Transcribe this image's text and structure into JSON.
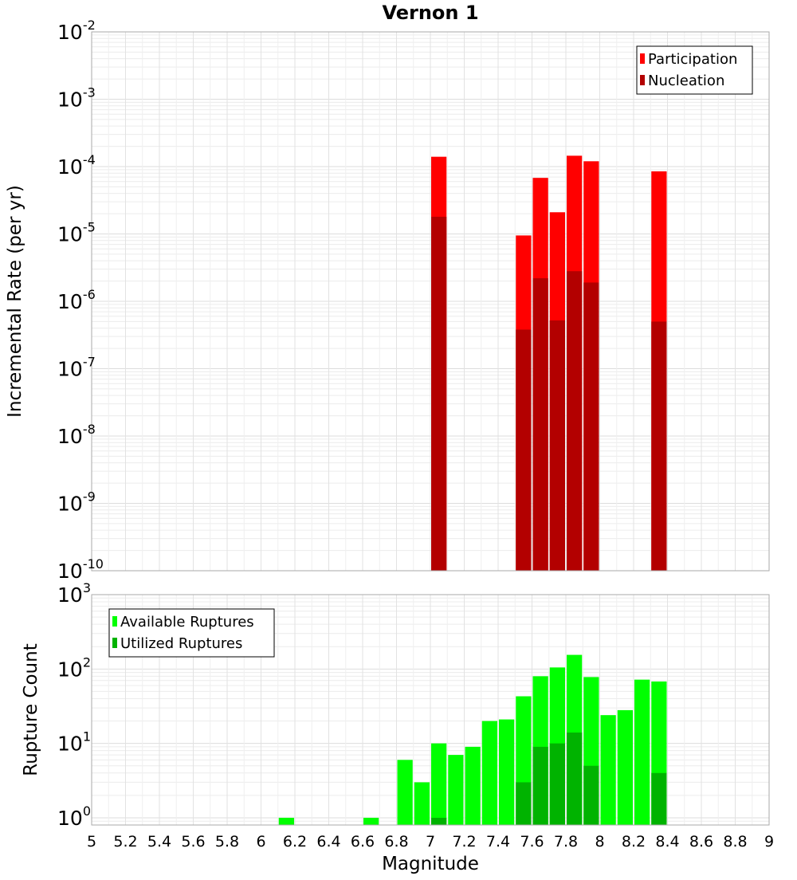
{
  "chart_data": [
    {
      "type": "bar",
      "title": "Vernon 1",
      "ylabel": "Incremental Rate (per yr)",
      "xlabel": "",
      "yscale": "log",
      "ylim": [
        1e-10,
        0.01
      ],
      "xlim": [
        5,
        9
      ],
      "bar_width": 0.1,
      "ytick_exponents": [
        "-2",
        "-3",
        "-4",
        "-5",
        "-6",
        "-7",
        "-8",
        "-9",
        "-10"
      ],
      "legend_position": "top-right",
      "series": [
        {
          "name": "Participation",
          "color": "#ff0000",
          "points": [
            {
              "x": 7.05,
              "y": 0.00014
            },
            {
              "x": 7.55,
              "y": 9.5e-06
            },
            {
              "x": 7.65,
              "y": 6.8e-05
            },
            {
              "x": 7.75,
              "y": 2.1e-05
            },
            {
              "x": 7.85,
              "y": 0.000145
            },
            {
              "x": 7.95,
              "y": 0.00012
            },
            {
              "x": 8.35,
              "y": 8.5e-05
            }
          ]
        },
        {
          "name": "Nucleation",
          "color": "#b30000",
          "points": [
            {
              "x": 7.05,
              "y": 1.8e-05
            },
            {
              "x": 7.55,
              "y": 3.8e-07
            },
            {
              "x": 7.65,
              "y": 2.2e-06
            },
            {
              "x": 7.75,
              "y": 5.2e-07
            },
            {
              "x": 7.85,
              "y": 2.8e-06
            },
            {
              "x": 7.95,
              "y": 1.9e-06
            },
            {
              "x": 8.35,
              "y": 5e-07
            }
          ]
        }
      ]
    },
    {
      "type": "bar",
      "title": "",
      "ylabel": "Rupture Count",
      "xlabel": "Magnitude",
      "yscale": "log",
      "ylim": [
        0.8,
        1000
      ],
      "xlim": [
        5,
        9
      ],
      "bar_width": 0.1,
      "ytick_exponents": [
        "3",
        "2",
        "1",
        "0"
      ],
      "xticks": [
        "5",
        "5.2",
        "5.4",
        "5.6",
        "5.8",
        "6",
        "6.2",
        "6.4",
        "6.6",
        "6.8",
        "7",
        "7.2",
        "7.4",
        "7.6",
        "7.8",
        "8",
        "8.2",
        "8.4",
        "8.6",
        "8.8",
        "9"
      ],
      "legend_position": "top-left",
      "series": [
        {
          "name": "Available Ruptures",
          "color": "#00ff00",
          "points": [
            {
              "x": 6.15,
              "y": 1
            },
            {
              "x": 6.65,
              "y": 1
            },
            {
              "x": 6.85,
              "y": 6
            },
            {
              "x": 6.95,
              "y": 3
            },
            {
              "x": 7.05,
              "y": 10
            },
            {
              "x": 7.15,
              "y": 7
            },
            {
              "x": 7.25,
              "y": 9
            },
            {
              "x": 7.35,
              "y": 20
            },
            {
              "x": 7.45,
              "y": 21
            },
            {
              "x": 7.55,
              "y": 43
            },
            {
              "x": 7.65,
              "y": 80
            },
            {
              "x": 7.75,
              "y": 105
            },
            {
              "x": 7.85,
              "y": 155
            },
            {
              "x": 7.95,
              "y": 78
            },
            {
              "x": 8.05,
              "y": 24
            },
            {
              "x": 8.15,
              "y": 28
            },
            {
              "x": 8.25,
              "y": 72
            },
            {
              "x": 8.35,
              "y": 68
            }
          ]
        },
        {
          "name": "Utilized Ruptures",
          "color": "#00b300",
          "points": [
            {
              "x": 7.05,
              "y": 1
            },
            {
              "x": 7.55,
              "y": 3
            },
            {
              "x": 7.65,
              "y": 9
            },
            {
              "x": 7.75,
              "y": 10
            },
            {
              "x": 7.85,
              "y": 14
            },
            {
              "x": 7.95,
              "y": 5
            },
            {
              "x": 8.35,
              "y": 4
            }
          ]
        }
      ]
    }
  ]
}
